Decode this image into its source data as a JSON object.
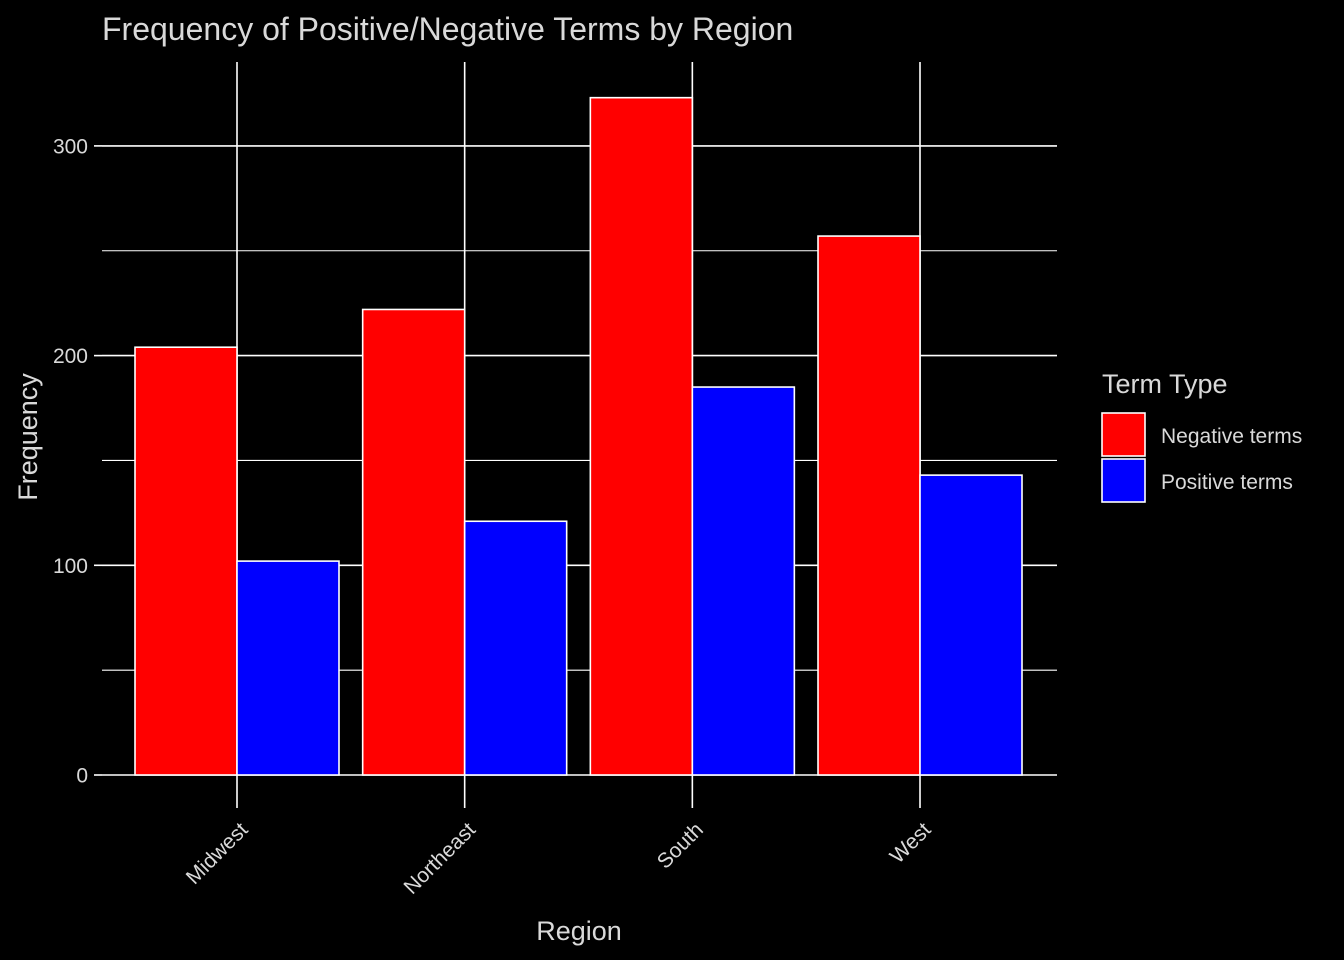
{
  "chart_data": {
    "type": "bar",
    "title": "Frequency of Positive/Negative Terms by Region",
    "xlabel": "Region",
    "ylabel": "Frequency",
    "categories": [
      "Midwest",
      "Northeast",
      "South",
      "West"
    ],
    "series": [
      {
        "name": "Negative terms",
        "color": "#ff0000",
        "values": [
          204,
          222,
          323,
          257
        ]
      },
      {
        "name": "Positive terms",
        "color": "#0000ff",
        "values": [
          102,
          121,
          185,
          143
        ]
      }
    ],
    "ylim": [
      0,
      340
    ],
    "y_ticks": [
      0,
      100,
      200,
      300
    ],
    "y_tick_labels": [
      "0",
      "100",
      "200",
      "300"
    ],
    "grid": true,
    "legend": {
      "title": "Term Type",
      "position": "right"
    },
    "colors": {
      "background": "#000000",
      "text": "#d9d9d9",
      "grid": "#ffffff",
      "bar_outline": "#ffffff"
    }
  }
}
